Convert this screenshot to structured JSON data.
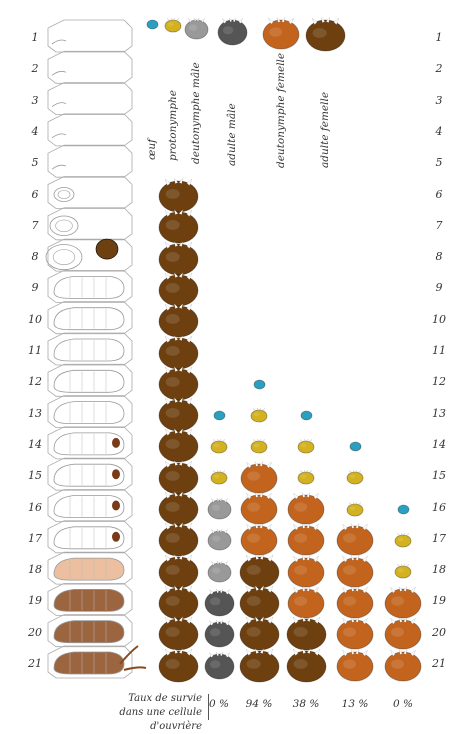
{
  "days": [
    1,
    2,
    3,
    4,
    5,
    6,
    7,
    8,
    9,
    10,
    11,
    12,
    13,
    14,
    15,
    16,
    17,
    18,
    19,
    20,
    21
  ],
  "colors": {
    "egg": "#2a9fc0",
    "protonymph": "#d4b21f",
    "deutonymph_male": "#999999",
    "adult_male": "#555555",
    "deutonymph_female": "#c2641e",
    "adult_female": "#6e4010",
    "brood_outline": "#aaaaaa",
    "pupa_tan": "#e7b48e",
    "pupa_brown": "#8a4a1f"
  },
  "legend": [
    {
      "key": "egg",
      "label": "œuf",
      "icon": "egg-icon"
    },
    {
      "key": "protonymph",
      "label": "protonymphe",
      "icon": "protonymph-icon"
    },
    {
      "key": "deutonymph_male",
      "label": "deutonymphe mâle",
      "icon": "deutonymph-male-icon"
    },
    {
      "key": "adult_male",
      "label": "adulte mâle",
      "icon": "adult-male-icon"
    },
    {
      "key": "deutonymph_female",
      "label": "deutonymphe femelle",
      "icon": "deutonymph-female-icon"
    },
    {
      "key": "adult_female",
      "label": "adulte femelle",
      "icon": "adult-female-icon"
    }
  ],
  "lineages": [
    {
      "id": "founder",
      "cells": [
        {
          "day": 6,
          "stage": "adult_female"
        },
        {
          "day": 7,
          "stage": "adult_female"
        },
        {
          "day": 8,
          "stage": "adult_female"
        },
        {
          "day": 9,
          "stage": "adult_female"
        },
        {
          "day": 10,
          "stage": "adult_female"
        },
        {
          "day": 11,
          "stage": "adult_female"
        },
        {
          "day": 12,
          "stage": "adult_female"
        },
        {
          "day": 13,
          "stage": "adult_female"
        },
        {
          "day": 14,
          "stage": "adult_female"
        },
        {
          "day": 15,
          "stage": "adult_female"
        },
        {
          "day": 16,
          "stage": "adult_female"
        },
        {
          "day": 17,
          "stage": "adult_female"
        },
        {
          "day": 18,
          "stage": "adult_female"
        },
        {
          "day": 19,
          "stage": "adult_female"
        },
        {
          "day": 20,
          "stage": "adult_female"
        },
        {
          "day": 21,
          "stage": "adult_female"
        }
      ]
    },
    {
      "id": "son",
      "survival": "0 %",
      "cells": [
        {
          "day": 13,
          "stage": "egg"
        },
        {
          "day": 14,
          "stage": "protonymph"
        },
        {
          "day": 15,
          "stage": "protonymph"
        },
        {
          "day": 16,
          "stage": "deutonymph_male"
        },
        {
          "day": 17,
          "stage": "deutonymph_male"
        },
        {
          "day": 18,
          "stage": "deutonymph_male"
        },
        {
          "day": 19,
          "stage": "adult_male"
        },
        {
          "day": 20,
          "stage": "adult_male"
        },
        {
          "day": 21,
          "stage": "adult_male"
        }
      ]
    },
    {
      "id": "daughter1",
      "survival": "94 %",
      "cells": [
        {
          "day": 12,
          "stage": "egg"
        },
        {
          "day": 13,
          "stage": "protonymph"
        },
        {
          "day": 14,
          "stage": "protonymph"
        },
        {
          "day": 15,
          "stage": "deutonymph_female"
        },
        {
          "day": 16,
          "stage": "deutonymph_female"
        },
        {
          "day": 17,
          "stage": "deutonymph_female"
        },
        {
          "day": 18,
          "stage": "adult_female"
        },
        {
          "day": 19,
          "stage": "adult_female"
        },
        {
          "day": 20,
          "stage": "adult_female"
        },
        {
          "day": 21,
          "stage": "adult_female"
        }
      ]
    },
    {
      "id": "daughter2",
      "survival": "38 %",
      "cells": [
        {
          "day": 13,
          "stage": "egg"
        },
        {
          "day": 14,
          "stage": "protonymph"
        },
        {
          "day": 15,
          "stage": "protonymph"
        },
        {
          "day": 16,
          "stage": "deutonymph_female"
        },
        {
          "day": 17,
          "stage": "deutonymph_female"
        },
        {
          "day": 18,
          "stage": "deutonymph_female"
        },
        {
          "day": 19,
          "stage": "deutonymph_female"
        },
        {
          "day": 20,
          "stage": "adult_female"
        },
        {
          "day": 21,
          "stage": "adult_female"
        }
      ]
    },
    {
      "id": "daughter3",
      "survival": "13 %",
      "cells": [
        {
          "day": 14,
          "stage": "egg"
        },
        {
          "day": 15,
          "stage": "protonymph"
        },
        {
          "day": 16,
          "stage": "protonymph"
        },
        {
          "day": 17,
          "stage": "deutonymph_female"
        },
        {
          "day": 18,
          "stage": "deutonymph_female"
        },
        {
          "day": 19,
          "stage": "deutonymph_female"
        },
        {
          "day": 20,
          "stage": "deutonymph_female"
        },
        {
          "day": 21,
          "stage": "deutonymph_female"
        }
      ]
    },
    {
      "id": "daughter4",
      "survival": "0 %",
      "cells": [
        {
          "day": 16,
          "stage": "egg"
        },
        {
          "day": 17,
          "stage": "protonymph"
        },
        {
          "day": 18,
          "stage": "protonymph"
        },
        {
          "day": 19,
          "stage": "deutonymph_female"
        },
        {
          "day": 20,
          "stage": "deutonymph_female"
        },
        {
          "day": 21,
          "stage": "deutonymph_female"
        }
      ]
    }
  ],
  "survival_caption": {
    "line1": "Taux de survie",
    "line2": "dans une cellule d'ouvrière"
  }
}
